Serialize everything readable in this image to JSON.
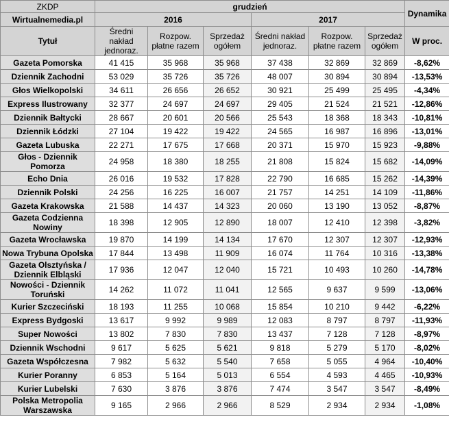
{
  "table": {
    "corner": "ZKDP",
    "source": "Wirtualnemedia.pl",
    "period": "grudzień",
    "change_header": "Dynamika",
    "years": [
      "2016",
      "2017"
    ],
    "columns": [
      "Tytuł",
      "Średni nakład jednoraz.",
      "Rozpow. płatne razem",
      "Sprzedaż ogółem",
      "Średni nakład jednoraz.",
      "Rozpow. płatne razem",
      "Sprzedaż ogółem",
      "W proc."
    ],
    "rows": [
      [
        "Gazeta Pomorska",
        "41 415",
        "35 968",
        "35 968",
        "37 438",
        "32 869",
        "32 869",
        "-8,62%"
      ],
      [
        "Dziennik Zachodni",
        "53 029",
        "35 726",
        "35 726",
        "48 007",
        "30 894",
        "30 894",
        "-13,53%"
      ],
      [
        "Głos Wielkopolski",
        "34 611",
        "26 656",
        "26 652",
        "30 921",
        "25 499",
        "25 495",
        "-4,34%"
      ],
      [
        "Express Ilustrowany",
        "32 377",
        "24 697",
        "24 697",
        "29 405",
        "21 524",
        "21 521",
        "-12,86%"
      ],
      [
        "Dziennik Bałtycki",
        "28 667",
        "20 601",
        "20 566",
        "25 543",
        "18 368",
        "18 343",
        "-10,81%"
      ],
      [
        "Dziennik Łódzki",
        "27 104",
        "19 422",
        "19 422",
        "24 565",
        "16 987",
        "16 896",
        "-13,01%"
      ],
      [
        "Gazeta Lubuska",
        "22 271",
        "17 675",
        "17 668",
        "20 371",
        "15 970",
        "15 923",
        "-9,88%"
      ],
      [
        "Głos - Dziennik Pomorza",
        "24 958",
        "18 380",
        "18 255",
        "21 808",
        "15 824",
        "15 682",
        "-14,09%"
      ],
      [
        "Echo Dnia",
        "26 016",
        "19 532",
        "17 828",
        "22 790",
        "16 685",
        "15 262",
        "-14,39%"
      ],
      [
        "Dziennik Polski",
        "24 256",
        "16 225",
        "16 007",
        "21 757",
        "14 251",
        "14 109",
        "-11,86%"
      ],
      [
        "Gazeta Krakowska",
        "21 588",
        "14 437",
        "14 323",
        "20 060",
        "13 190",
        "13 052",
        "-8,87%"
      ],
      [
        "Gazeta Codzienna Nowiny",
        "18 398",
        "12 905",
        "12 890",
        "18 007",
        "12 410",
        "12 398",
        "-3,82%"
      ],
      [
        "Gazeta Wrocławska",
        "19 870",
        "14 199",
        "14 134",
        "17 670",
        "12 307",
        "12 307",
        "-12,93%"
      ],
      [
        "Nowa Trybuna Opolska",
        "17 844",
        "13 498",
        "11 909",
        "16 074",
        "11 764",
        "10 316",
        "-13,38%"
      ],
      [
        "Gazeta Olsztyńska / Dziennik Elbląski",
        "17 936",
        "12 047",
        "12 040",
        "15 721",
        "10 493",
        "10 260",
        "-14,78%"
      ],
      [
        "Nowości - Dziennik Toruński",
        "14 262",
        "11 072",
        "11 041",
        "12 565",
        "9 637",
        "9 599",
        "-13,06%"
      ],
      [
        "Kurier Szczeciński",
        "18 193",
        "11 255",
        "10 068",
        "15 854",
        "10 210",
        "9 442",
        "-6,22%"
      ],
      [
        "Express Bydgoski",
        "13 617",
        "9 992",
        "9 989",
        "12 083",
        "8 797",
        "8 797",
        "-11,93%"
      ],
      [
        "Super Nowości",
        "13 802",
        "7 830",
        "7 830",
        "13 437",
        "7 128",
        "7 128",
        "-8,97%"
      ],
      [
        "Dziennik Wschodni",
        "9 617",
        "5 625",
        "5 621",
        "9 818",
        "5 279",
        "5 170",
        "-8,02%"
      ],
      [
        "Gazeta Współczesna",
        "7 982",
        "5 632",
        "5 540",
        "7 658",
        "5 055",
        "4 964",
        "-10,40%"
      ],
      [
        "Kurier Poranny",
        "6 853",
        "5 164",
        "5 013",
        "6 554",
        "4 593",
        "4 465",
        "-10,93%"
      ],
      [
        "Kurier Lubelski",
        "7 630",
        "3 876",
        "3 876",
        "7 474",
        "3 547",
        "3 547",
        "-8,49%"
      ],
      [
        "Polska Metropolia Warszawska",
        "9 165",
        "2 966",
        "2 966",
        "8 529",
        "2 934",
        "2 934",
        "-1,08%"
      ]
    ]
  }
}
